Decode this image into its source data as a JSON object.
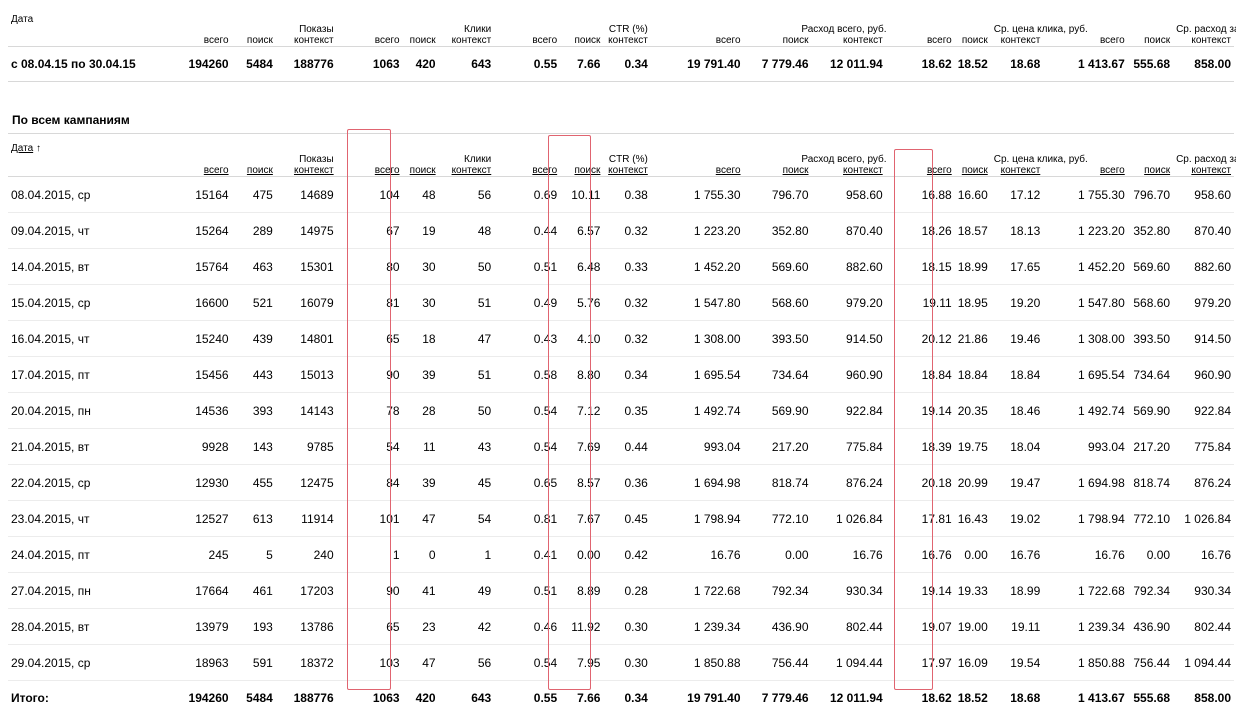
{
  "summary": {
    "headers": {
      "date": "Дата",
      "impressions_group": "Показы",
      "clicks_group": "Клики",
      "ctr_group": "CTR (%)",
      "spend_group": "Расход всего, руб.",
      "cpc_group": "Ср. цена клика, руб.",
      "daily_group": "Ср. расход за день, руб.",
      "total": "всего",
      "search": "поиск",
      "context": "контекст"
    },
    "row": [
      "с 08.04.15 по 30.04.15",
      "194260",
      "5484",
      "188776",
      "1063",
      "420",
      "643",
      "0.55",
      "7.66",
      "0.34",
      "19 791.40",
      "7 779.46",
      "12 011.94",
      "18.62",
      "18.52",
      "18.68",
      "1 413.67",
      "555.68",
      "858.00"
    ]
  },
  "section_title": "По всем кампаниям",
  "main": {
    "headers": {
      "date": "Дата",
      "sort_arrow": "↑",
      "impressions_group": "Показы",
      "clicks_group": "Клики",
      "ctr_group": "CTR (%)",
      "spend_group": "Расход всего, руб.",
      "cpc_group": "Ср. цена клика, руб.",
      "daily_group": "Ср. расход за день, руб.",
      "total": "всего",
      "search": "поиск",
      "context": "контекст"
    },
    "rows": [
      [
        "08.04.2015, ср",
        "15164",
        "475",
        "14689",
        "104",
        "48",
        "56",
        "0.69",
        "10.11",
        "0.38",
        "1 755.30",
        "796.70",
        "958.60",
        "16.88",
        "16.60",
        "17.12",
        "1 755.30",
        "796.70",
        "958.60"
      ],
      [
        "09.04.2015, чт",
        "15264",
        "289",
        "14975",
        "67",
        "19",
        "48",
        "0.44",
        "6.57",
        "0.32",
        "1 223.20",
        "352.80",
        "870.40",
        "18.26",
        "18.57",
        "18.13",
        "1 223.20",
        "352.80",
        "870.40"
      ],
      [
        "14.04.2015, вт",
        "15764",
        "463",
        "15301",
        "80",
        "30",
        "50",
        "0.51",
        "6.48",
        "0.33",
        "1 452.20",
        "569.60",
        "882.60",
        "18.15",
        "18.99",
        "17.65",
        "1 452.20",
        "569.60",
        "882.60"
      ],
      [
        "15.04.2015, ср",
        "16600",
        "521",
        "16079",
        "81",
        "30",
        "51",
        "0.49",
        "5.76",
        "0.32",
        "1 547.80",
        "568.60",
        "979.20",
        "19.11",
        "18.95",
        "19.20",
        "1 547.80",
        "568.60",
        "979.20"
      ],
      [
        "16.04.2015, чт",
        "15240",
        "439",
        "14801",
        "65",
        "18",
        "47",
        "0.43",
        "4.10",
        "0.32",
        "1 308.00",
        "393.50",
        "914.50",
        "20.12",
        "21.86",
        "19.46",
        "1 308.00",
        "393.50",
        "914.50"
      ],
      [
        "17.04.2015, пт",
        "15456",
        "443",
        "15013",
        "90",
        "39",
        "51",
        "0.58",
        "8.80",
        "0.34",
        "1 695.54",
        "734.64",
        "960.90",
        "18.84",
        "18.84",
        "18.84",
        "1 695.54",
        "734.64",
        "960.90"
      ],
      [
        "20.04.2015, пн",
        "14536",
        "393",
        "14143",
        "78",
        "28",
        "50",
        "0.54",
        "7.12",
        "0.35",
        "1 492.74",
        "569.90",
        "922.84",
        "19.14",
        "20.35",
        "18.46",
        "1 492.74",
        "569.90",
        "922.84"
      ],
      [
        "21.04.2015, вт",
        "9928",
        "143",
        "9785",
        "54",
        "11",
        "43",
        "0.54",
        "7.69",
        "0.44",
        "993.04",
        "217.20",
        "775.84",
        "18.39",
        "19.75",
        "18.04",
        "993.04",
        "217.20",
        "775.84"
      ],
      [
        "22.04.2015, ср",
        "12930",
        "455",
        "12475",
        "84",
        "39",
        "45",
        "0.65",
        "8.57",
        "0.36",
        "1 694.98",
        "818.74",
        "876.24",
        "20.18",
        "20.99",
        "19.47",
        "1 694.98",
        "818.74",
        "876.24"
      ],
      [
        "23.04.2015, чт",
        "12527",
        "613",
        "11914",
        "101",
        "47",
        "54",
        "0.81",
        "7.67",
        "0.45",
        "1 798.94",
        "772.10",
        "1 026.84",
        "17.81",
        "16.43",
        "19.02",
        "1 798.94",
        "772.10",
        "1 026.84"
      ],
      [
        "24.04.2015, пт",
        "245",
        "5",
        "240",
        "1",
        "0",
        "1",
        "0.41",
        "0.00",
        "0.42",
        "16.76",
        "0.00",
        "16.76",
        "16.76",
        "0.00",
        "16.76",
        "16.76",
        "0.00",
        "16.76"
      ],
      [
        "27.04.2015, пн",
        "17664",
        "461",
        "17203",
        "90",
        "41",
        "49",
        "0.51",
        "8.89",
        "0.28",
        "1 722.68",
        "792.34",
        "930.34",
        "19.14",
        "19.33",
        "18.99",
        "1 722.68",
        "792.34",
        "930.34"
      ],
      [
        "28.04.2015, вт",
        "13979",
        "193",
        "13786",
        "65",
        "23",
        "42",
        "0.46",
        "11.92",
        "0.30",
        "1 239.34",
        "436.90",
        "802.44",
        "19.07",
        "19.00",
        "19.11",
        "1 239.34",
        "436.90",
        "802.44"
      ],
      [
        "29.04.2015, ср",
        "18963",
        "591",
        "18372",
        "103",
        "47",
        "56",
        "0.54",
        "7.95",
        "0.30",
        "1 850.88",
        "756.44",
        "1 094.44",
        "17.97",
        "16.09",
        "19.54",
        "1 850.88",
        "756.44",
        "1 094.44"
      ]
    ],
    "total_row": [
      "Итого:",
      "194260",
      "5484",
      "188776",
      "1063",
      "420",
      "643",
      "0.55",
      "7.66",
      "0.34",
      "19 791.40",
      "7 779.46",
      "12 011.94",
      "18.62",
      "18.52",
      "18.68",
      "1 413.67",
      "555.68",
      "858.00"
    ]
  },
  "colors": {
    "highlight": "#e06470",
    "border": "#d8d8d8"
  }
}
